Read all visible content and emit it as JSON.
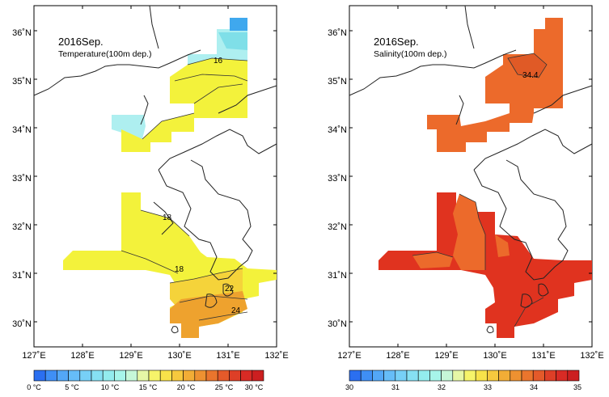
{
  "left_panel": {
    "title": "2016Sep.",
    "subtitle": "Temperature(100m dep.)",
    "contour_labels": [
      "16",
      "18",
      "18",
      "22",
      "24"
    ],
    "colorbar": {
      "tick_labels": [
        "0 °C",
        "5 °C",
        "10 °C",
        "15 °C",
        "20 °C",
        "25 °C",
        "30 °C"
      ],
      "colors": [
        "#2b6ff0",
        "#3f8ff5",
        "#53a7f7",
        "#66bdf8",
        "#77d0f7",
        "#86e0f3",
        "#93ecee",
        "#a7f5ea",
        "#c6f7d8",
        "#e6f7a6",
        "#f6f46a",
        "#f8e24a",
        "#f6c93e",
        "#f2ad36",
        "#ee9131",
        "#ea752d",
        "#e45a2a",
        "#de3f27",
        "#d82b25",
        "#cc1f20"
      ]
    }
  },
  "right_panel": {
    "title": "2016Sep.",
    "subtitle": "Salinity(100m dep.)",
    "contour_labels": [
      "34.4"
    ],
    "colorbar": {
      "tick_labels": [
        "30",
        "31",
        "32",
        "33",
        "34",
        "35"
      ],
      "colors": [
        "#2b6ff0",
        "#3f8ff5",
        "#53a7f7",
        "#66bdf8",
        "#77d0f7",
        "#86e0f3",
        "#93ecee",
        "#a7f5ea",
        "#c6f7d8",
        "#e6f7a6",
        "#f6f46a",
        "#f8e24a",
        "#f6c93e",
        "#f2ad36",
        "#ee9131",
        "#ea752d",
        "#e45a2a",
        "#de3f27",
        "#d82b25",
        "#cc1f20"
      ]
    }
  },
  "axes": {
    "x_ticks": [
      "127˚E",
      "128˚E",
      "129˚E",
      "130˚E",
      "131˚E",
      "132˚E"
    ],
    "y_ticks": [
      "36˚N",
      "35˚N",
      "34˚N",
      "33˚N",
      "32˚N",
      "31˚N",
      "30˚N"
    ]
  },
  "fill_colors": {
    "temp_cold": "#aeeff0",
    "temp_cool": "#7fdfe8",
    "temp_mid": "#f3f23b",
    "temp_warm": "#f5d33a",
    "temp_hot": "#eea22e",
    "sal_main": "#ec6a2b",
    "sal_high": "#e0331f",
    "sal_peak": "#d6281f"
  }
}
